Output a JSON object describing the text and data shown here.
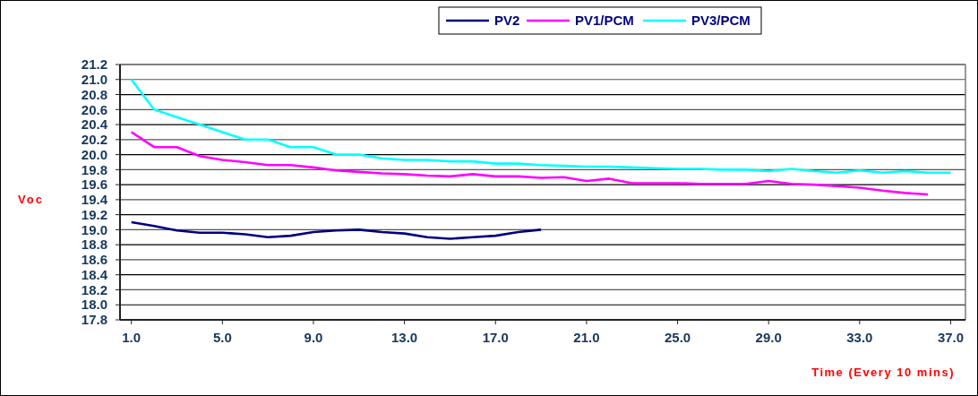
{
  "chart_data": {
    "type": "line",
    "xlabel": "Time (Every 10 mins)",
    "ylabel": "Voc",
    "x": [
      1,
      2,
      3,
      4,
      5,
      6,
      7,
      8,
      9,
      10,
      11,
      12,
      13,
      14,
      15,
      16,
      17,
      18,
      19,
      20,
      21,
      22,
      23,
      24,
      25,
      26,
      27,
      28,
      29,
      30,
      31,
      32,
      33,
      34,
      35,
      36,
      37
    ],
    "series": [
      {
        "name": "PV2",
        "color": "#000080",
        "values": [
          19.1,
          19.05,
          18.99,
          18.96,
          18.96,
          18.94,
          18.9,
          18.92,
          18.97,
          18.99,
          19.0,
          18.97,
          18.95,
          18.9,
          18.88,
          18.9,
          18.92,
          18.97,
          19.0,
          null,
          null,
          null,
          null,
          null,
          null,
          null,
          null,
          null,
          null,
          null,
          null,
          null,
          null,
          null,
          null,
          null,
          null
        ]
      },
      {
        "name": "PV1/PCM",
        "color": "#ff00ff",
        "values": [
          20.3,
          20.1,
          20.1,
          19.98,
          19.93,
          19.9,
          19.86,
          19.86,
          19.83,
          19.79,
          19.77,
          19.75,
          19.74,
          19.72,
          19.71,
          19.74,
          19.71,
          19.71,
          19.69,
          19.7,
          19.65,
          19.68,
          19.62,
          19.62,
          19.62,
          19.61,
          19.61,
          19.61,
          19.65,
          19.61,
          19.6,
          19.58,
          19.56,
          19.52,
          19.49,
          19.47,
          null
        ]
      },
      {
        "name": "PV3/PCM",
        "color": "#00ffff",
        "values": [
          21.0,
          20.6,
          20.5,
          20.4,
          20.3,
          20.2,
          20.2,
          20.1,
          20.1,
          20.0,
          20.0,
          19.95,
          19.93,
          19.93,
          19.91,
          19.91,
          19.88,
          19.88,
          19.86,
          19.85,
          19.84,
          19.84,
          19.83,
          19.82,
          19.81,
          19.81,
          19.8,
          19.8,
          19.78,
          19.81,
          19.78,
          19.76,
          19.79,
          19.76,
          19.78,
          19.76,
          19.76
        ]
      }
    ],
    "xlim": [
      0.5,
      37.65
    ],
    "xticks": [
      {
        "value": 1,
        "label": "1.0"
      },
      {
        "value": 5,
        "label": "5.0"
      },
      {
        "value": 9,
        "label": "9.0"
      },
      {
        "value": 13,
        "label": "13.0"
      },
      {
        "value": 17,
        "label": "17.0"
      },
      {
        "value": 21,
        "label": "21.0"
      },
      {
        "value": 25,
        "label": "25.0"
      },
      {
        "value": 29,
        "label": "29.0"
      },
      {
        "value": 33,
        "label": "33.0"
      },
      {
        "value": 37,
        "label": "37.0"
      }
    ],
    "ylim": [
      17.8,
      21.2
    ],
    "yticks": [
      {
        "value": 17.8,
        "label": "17.8"
      },
      {
        "value": 18,
        "label": "18.0"
      },
      {
        "value": 18.2,
        "label": "18.2"
      },
      {
        "value": 18.4,
        "label": "18.4"
      },
      {
        "value": 18.6,
        "label": "18.6"
      },
      {
        "value": 18.8,
        "label": "18.8"
      },
      {
        "value": 19,
        "label": "19.0"
      },
      {
        "value": 19.2,
        "label": "19.2"
      },
      {
        "value": 19.4,
        "label": "19.4"
      },
      {
        "value": 19.6,
        "label": "19.6"
      },
      {
        "value": 19.8,
        "label": "19.8"
      },
      {
        "value": 20,
        "label": "20.0"
      },
      {
        "value": 20.2,
        "label": "20.2"
      },
      {
        "value": 20.4,
        "label": "20.4"
      },
      {
        "value": 20.6,
        "label": "20.6"
      },
      {
        "value": 20.8,
        "label": "20.8"
      },
      {
        "value": 21,
        "label": "21.0"
      },
      {
        "value": 21.2,
        "label": "21.2"
      }
    ],
    "grid": "y",
    "legend": "top",
    "marker": "none",
    "line_style": "solid"
  }
}
